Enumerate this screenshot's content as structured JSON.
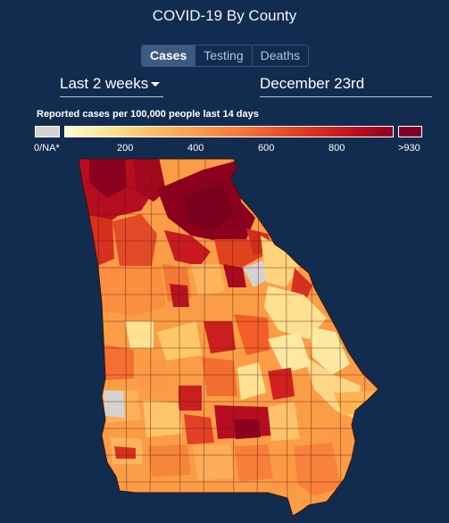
{
  "title": "COVID-19 By County",
  "tabs": [
    {
      "label": "Cases",
      "active": true
    },
    {
      "label": "Testing",
      "active": false
    },
    {
      "label": "Deaths",
      "active": false
    }
  ],
  "range_select": {
    "value": "Last 2 weeks"
  },
  "date_field": {
    "value": "December 23rd"
  },
  "legend": {
    "title": "Reported cases per 100,000 people last 14 days",
    "na_label": "0/NA*",
    "ticks": [
      "200",
      "400",
      "600",
      "800"
    ],
    "max_label": ">930",
    "colors": {
      "na": "#d3d3d3",
      "low": "#fffbd0",
      "mid": "#f87d3a",
      "high": "#c0101f",
      "max": "#800026"
    }
  },
  "map": {
    "region": "Georgia",
    "unit": "county"
  }
}
